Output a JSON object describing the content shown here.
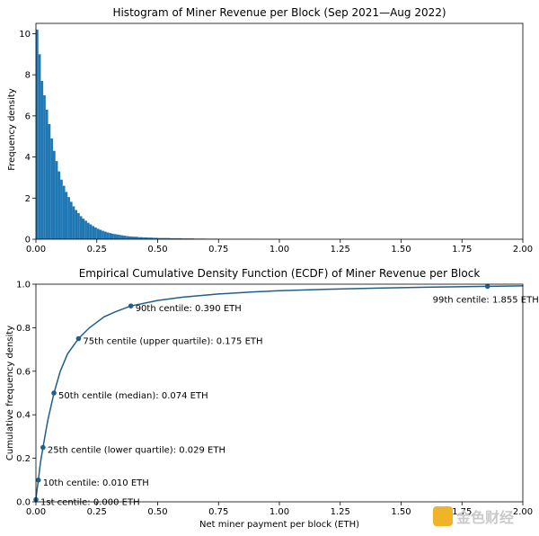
{
  "chart_data": [
    {
      "type": "bar",
      "title": "Histogram of Miner Revenue per Block (Sep 2021—Aug 2022)",
      "xlabel": "",
      "ylabel": "Frequency density",
      "xlim": [
        0,
        2.0
      ],
      "ylim": [
        0,
        10.5
      ],
      "xticks": [
        "0.00",
        "0.25",
        "0.50",
        "0.75",
        "1.00",
        "1.25",
        "1.50",
        "1.75",
        "2.00"
      ],
      "yticks": [
        "0",
        "2",
        "4",
        "6",
        "8",
        "10"
      ],
      "grid": false,
      "color": "#1f77b4",
      "bin_width": 0.01,
      "bin_starts": [
        0.0,
        0.01,
        0.02,
        0.03,
        0.04,
        0.05,
        0.06,
        0.07,
        0.08,
        0.09,
        0.1,
        0.11,
        0.12,
        0.13,
        0.14,
        0.15,
        0.16,
        0.17,
        0.18,
        0.19,
        0.2,
        0.21,
        0.22,
        0.23,
        0.24,
        0.25,
        0.26,
        0.27,
        0.28,
        0.29,
        0.3,
        0.31,
        0.32,
        0.33,
        0.34,
        0.35,
        0.36,
        0.37,
        0.38,
        0.39,
        0.4,
        0.42,
        0.44,
        0.46,
        0.48,
        0.5,
        0.55,
        0.6,
        0.65,
        0.7,
        0.75,
        0.8,
        0.9,
        1.0
      ],
      "values": [
        10.2,
        9.0,
        7.7,
        7.0,
        6.3,
        5.6,
        4.9,
        4.3,
        3.8,
        3.3,
        2.9,
        2.6,
        2.3,
        2.05,
        1.82,
        1.6,
        1.42,
        1.27,
        1.12,
        1.0,
        0.9,
        0.8,
        0.72,
        0.64,
        0.57,
        0.51,
        0.46,
        0.41,
        0.37,
        0.33,
        0.3,
        0.27,
        0.25,
        0.23,
        0.21,
        0.19,
        0.17,
        0.15,
        0.14,
        0.13,
        0.12,
        0.1,
        0.09,
        0.08,
        0.07,
        0.06,
        0.05,
        0.04,
        0.03,
        0.025,
        0.02,
        0.015,
        0.01,
        0.005
      ]
    },
    {
      "type": "line",
      "title": "Empirical Cumulative Density Function (ECDF) of Miner Revenue per Block",
      "xlabel": "Net miner payment per block (ETH)",
      "ylabel": "Cumulative frequency density",
      "xlim": [
        0,
        2.0
      ],
      "ylim": [
        0,
        1.0
      ],
      "xticks": [
        "0.00",
        "0.25",
        "0.50",
        "0.75",
        "1.00",
        "1.25",
        "1.50",
        "1.75",
        "2.00"
      ],
      "yticks": [
        "0.0",
        "0.2",
        "0.4",
        "0.6",
        "0.8",
        "1.0"
      ],
      "grid": false,
      "color": "#1f5f8b",
      "x": [
        0.0,
        0.002,
        0.005,
        0.01,
        0.015,
        0.02,
        0.029,
        0.04,
        0.05,
        0.074,
        0.1,
        0.13,
        0.175,
        0.22,
        0.28,
        0.33,
        0.39,
        0.5,
        0.6,
        0.75,
        0.9,
        1.0,
        1.2,
        1.4,
        1.6,
        1.855,
        2.0
      ],
      "y": [
        0.0,
        0.03,
        0.06,
        0.1,
        0.15,
        0.19,
        0.25,
        0.32,
        0.38,
        0.5,
        0.6,
        0.68,
        0.75,
        0.8,
        0.85,
        0.875,
        0.9,
        0.925,
        0.94,
        0.955,
        0.965,
        0.97,
        0.977,
        0.982,
        0.986,
        0.99,
        0.992
      ],
      "points": [
        {
          "x": 0.0,
          "y": 0.01,
          "label": "1st centile: 0.000 ETH"
        },
        {
          "x": 0.01,
          "y": 0.1,
          "label": "10th centile: 0.010 ETH"
        },
        {
          "x": 0.029,
          "y": 0.25,
          "label": "25th centile (lower quartile): 0.029 ETH"
        },
        {
          "x": 0.074,
          "y": 0.5,
          "label": "50th centile (median): 0.074 ETH"
        },
        {
          "x": 0.175,
          "y": 0.75,
          "label": "75th centile (upper quartile): 0.175 ETH"
        },
        {
          "x": 0.39,
          "y": 0.9,
          "label": "90th centile: 0.390 ETH"
        },
        {
          "x": 1.855,
          "y": 0.99,
          "label": "99th centile: 1.855 ETH"
        }
      ]
    }
  ],
  "watermark": {
    "text": "金色财经",
    "color": "#f0b429"
  }
}
